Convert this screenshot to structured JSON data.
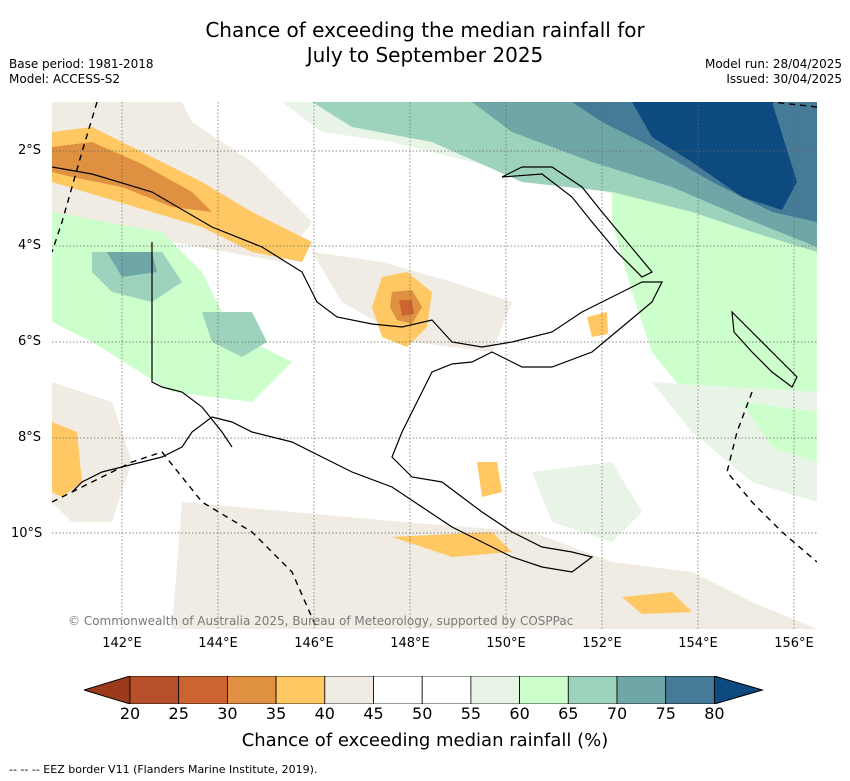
{
  "title_line1": "Chance of exceeding the median rainfall for",
  "title_line2": "July to September 2025",
  "base_period": "Base period: 1981-2018",
  "model": "Model: ACCESS-S2",
  "model_run": "Model run: 28/04/2025",
  "issued": "Issued: 30/04/2025",
  "copyright": "© Commonwealth of Australia 2025, Bureau of Meteorology, supported by COSPPac",
  "lat_labels": [
    "2°S",
    "4°S",
    "6°S",
    "8°S",
    "10°S"
  ],
  "lon_labels": [
    "142°E",
    "144°E",
    "146°E",
    "148°E",
    "150°E",
    "152°E",
    "154°E",
    "156°E"
  ],
  "colorbar": {
    "ticks": [
      "20",
      "25",
      "30",
      "35",
      "40",
      "45",
      "50",
      "55",
      "60",
      "65",
      "70",
      "75",
      "80"
    ],
    "colors": [
      "#9c3a1c",
      "#b6502a",
      "#cc6432",
      "#df9040",
      "#ffc863",
      "#f0ebe3",
      "#ffffff",
      "#ffffff",
      "#e8f5e6",
      "#ccffcc",
      "#9dd2bc",
      "#6fa6a8",
      "#467b97",
      "#0d4a80"
    ],
    "label": "Chance of exceeding median rainfall (%)"
  },
  "legend": "--  --  -- EEZ border V11 (Flanders Marine Institute, 2019)."
}
